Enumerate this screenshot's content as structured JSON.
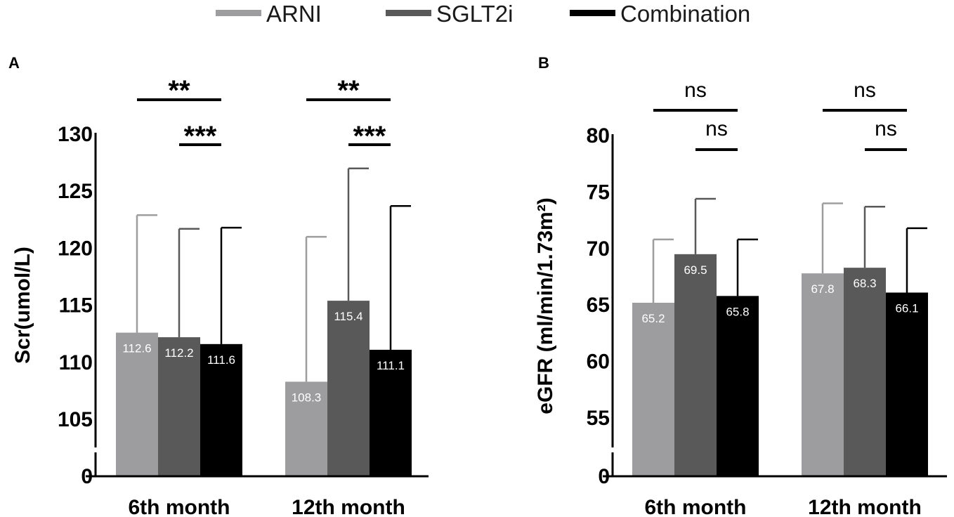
{
  "legend": [
    {
      "label": "ARNI",
      "color": "#9d9d9f"
    },
    {
      "label": "SGLT2i",
      "color": "#595959"
    },
    {
      "label": "Combination",
      "color": "#000000"
    }
  ],
  "chart_data": [
    {
      "panel": "A",
      "type": "bar",
      "ylabel": "Scr(umol/L)",
      "categories": [
        "6th month",
        "12th month"
      ],
      "yticks": [
        0,
        105,
        110,
        115,
        120,
        125,
        130
      ],
      "axis_break": true,
      "ylim": [
        103,
        130
      ],
      "series": [
        {
          "name": "ARNI",
          "values": [
            112.6,
            108.3
          ],
          "error_upper": [
            122.9,
            121.0
          ],
          "labels": [
            "112.6",
            "108.3"
          ]
        },
        {
          "name": "SGLT2i",
          "values": [
            112.2,
            115.4
          ],
          "error_upper": [
            121.7,
            127.0
          ],
          "labels": [
            "112.2",
            "115.4"
          ]
        },
        {
          "name": "Combination",
          "values": [
            111.6,
            111.1
          ],
          "error_upper": [
            121.8,
            123.7
          ],
          "labels": [
            "111.6",
            "111.1"
          ]
        }
      ],
      "significance": [
        {
          "category": "6th month",
          "from": "ARNI",
          "to": "Combination",
          "label": "**"
        },
        {
          "category": "6th month",
          "from": "SGLT2i",
          "to": "Combination",
          "label": "***"
        },
        {
          "category": "12th month",
          "from": "ARNI",
          "to": "Combination",
          "label": "**"
        },
        {
          "category": "12th month",
          "from": "SGLT2i",
          "to": "Combination",
          "label": "***"
        }
      ]
    },
    {
      "panel": "B",
      "type": "bar",
      "ylabel": "eGFR (ml/min/1.73m²)",
      "categories": [
        "6th month",
        "12th month"
      ],
      "yticks": [
        0,
        55,
        60,
        65,
        70,
        75,
        80
      ],
      "axis_break": true,
      "ylim": [
        53,
        80
      ],
      "series": [
        {
          "name": "ARNI",
          "values": [
            65.2,
            67.8
          ],
          "error_upper": [
            70.8,
            74.0
          ],
          "labels": [
            "65.2",
            "67.8"
          ]
        },
        {
          "name": "SGLT2i",
          "values": [
            69.5,
            68.3
          ],
          "error_upper": [
            74.4,
            73.7
          ],
          "labels": [
            "69.5",
            "68.3"
          ]
        },
        {
          "name": "Combination",
          "values": [
            65.8,
            66.1
          ],
          "error_upper": [
            70.8,
            71.8
          ],
          "labels": [
            "65.8",
            "66.1"
          ]
        }
      ],
      "significance": [
        {
          "category": "6th month",
          "from": "ARNI",
          "to": "Combination",
          "label": "ns"
        },
        {
          "category": "6th month",
          "from": "SGLT2i",
          "to": "Combination",
          "label": "ns"
        },
        {
          "category": "12th month",
          "from": "ARNI",
          "to": "Combination",
          "label": "ns"
        },
        {
          "category": "12th month",
          "from": "SGLT2i",
          "to": "Combination",
          "label": "ns"
        }
      ]
    }
  ]
}
